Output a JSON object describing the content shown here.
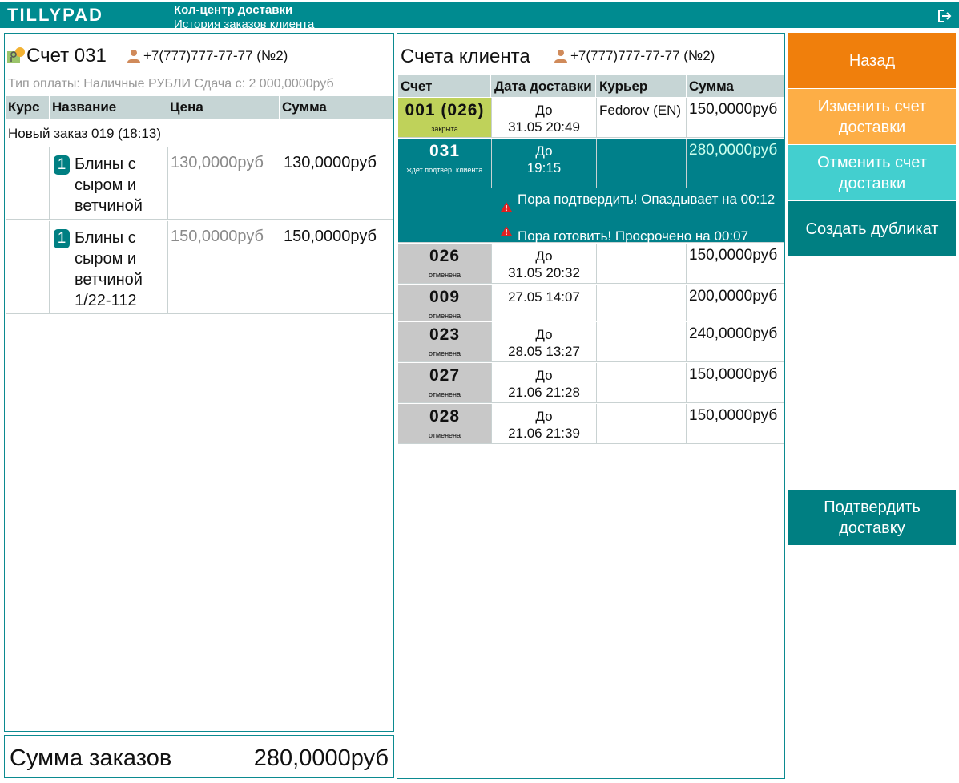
{
  "header": {
    "logo": "TILLYPAD",
    "title": "Кол-центр доставки",
    "subtitle": "История заказов клиента"
  },
  "order": {
    "title": "Счет 031",
    "phone": "+7(777)777-77-77 (№2)",
    "payment": "Тип оплаты: Наличные РУБЛИ Сдача с: 2 000,0000руб",
    "columns": [
      "Курс",
      "Название",
      "Цена",
      "Сумма"
    ],
    "group": "Новый заказ 019 (18:13)",
    "items": [
      {
        "qty": 1,
        "name": "Блины с сыром и ветчиной",
        "price": "130,0000руб",
        "sum": "130,0000руб"
      },
      {
        "qty": 1,
        "name": "Блины с сыром и ветчиной 1/22-112",
        "price": "150,0000руб",
        "sum": "150,0000руб"
      }
    ]
  },
  "total": {
    "label": "Сумма заказов",
    "value": "280,0000руб"
  },
  "client_orders": {
    "title": "Счета клиента",
    "phone": "+7(777)777-77-77 (№2)",
    "columns": [
      "Счет",
      "Дата доставки",
      "Курьер",
      "Сумма"
    ],
    "rows": [
      {
        "id": "001 (026)",
        "status": "закрыта",
        "date_prefix": "До",
        "date": "31.05 20:49",
        "courier": "Fedorov (EN)",
        "sum": "150,0000руб",
        "state": "closed"
      },
      {
        "id": "031",
        "status": "ждет подтвер. клиента",
        "date_prefix": "До",
        "date": "19:15",
        "sum": "280,0000руб",
        "state": "active",
        "warnings": [
          "Пора подтвердить! Опаздывает на 00:12",
          "Пора готовить! Просрочено на 00:07"
        ]
      },
      {
        "id": "026",
        "status": "отменена",
        "date_prefix": "До",
        "date": "31.05 20:32",
        "sum": "150,0000руб",
        "state": "cancelled"
      },
      {
        "id": "009",
        "status": "отменена",
        "date": "27.05 14:07",
        "sum": "200,0000руб",
        "state": "cancelled"
      },
      {
        "id": "023",
        "status": "отменена",
        "date_prefix": "До",
        "date": "28.05 13:27",
        "sum": "240,0000руб",
        "state": "cancelled"
      },
      {
        "id": "027",
        "status": "отменена",
        "date_prefix": "До",
        "date": "21.06 21:28",
        "sum": "150,0000руб",
        "state": "cancelled"
      },
      {
        "id": "028",
        "status": "отменена",
        "date_prefix": "До",
        "date": "21.06 21:39",
        "sum": "150,0000руб",
        "state": "cancelled"
      }
    ]
  },
  "actions": [
    {
      "label": "Назад",
      "color": "#f07f0c"
    },
    {
      "label": "Изменить счет доставки",
      "color": "#fdae46"
    },
    {
      "label": "Отменить счет доставки",
      "color": "#43cfcf"
    },
    {
      "label": "Создать дубликат",
      "color": "#007f82"
    },
    {
      "label": "Подтвердить доставку",
      "color": "#007f82"
    }
  ]
}
